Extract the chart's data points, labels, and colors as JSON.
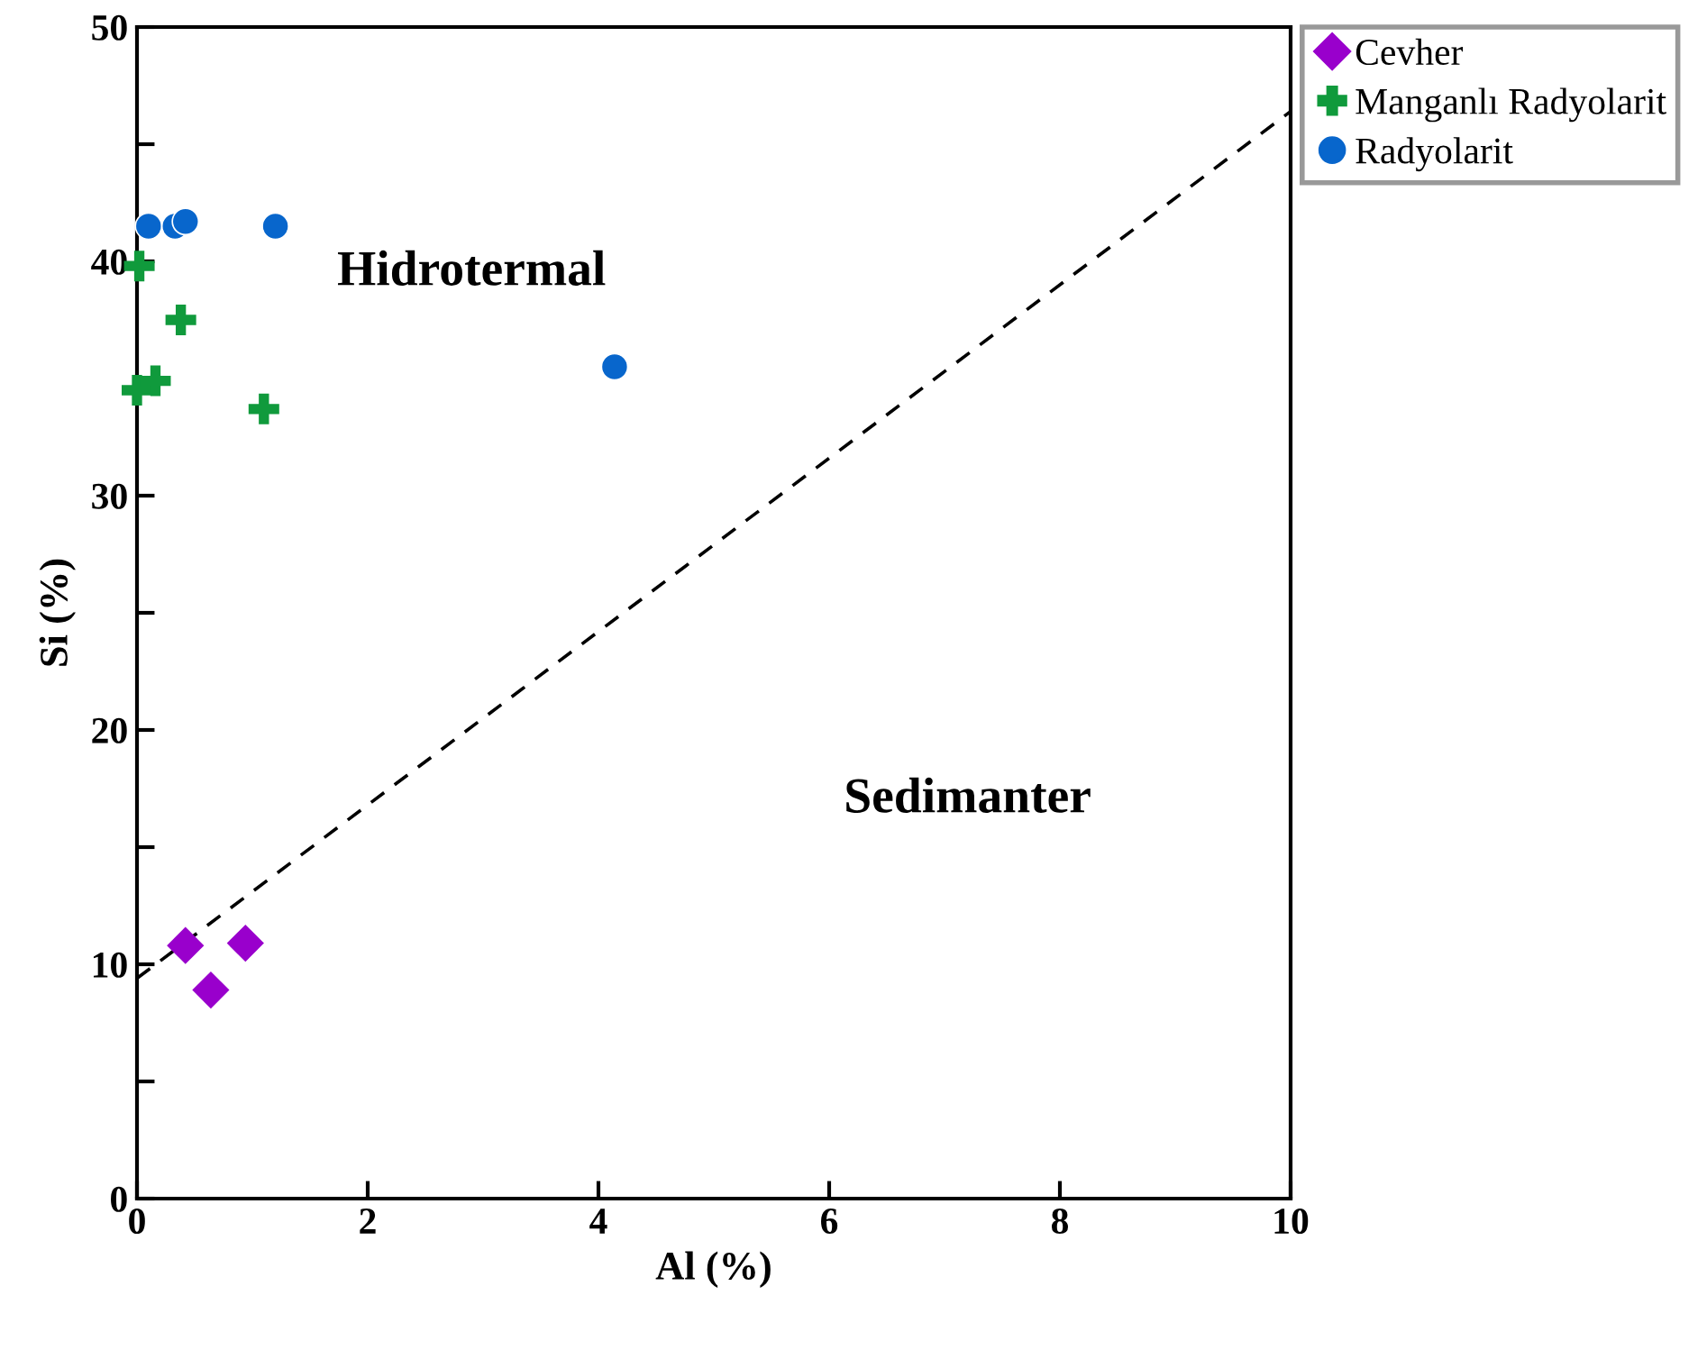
{
  "chart_data": {
    "type": "scatter",
    "xlabel": "Al (%)",
    "ylabel": "Si (%)",
    "xlim": [
      0,
      10
    ],
    "ylim": [
      0,
      50
    ],
    "xticks": [
      0,
      2,
      4,
      6,
      8,
      10
    ],
    "yticks": [
      0,
      {
        "value": 5,
        "label": null
      },
      10,
      {
        "value": 15,
        "label": null
      },
      20,
      {
        "value": 25,
        "label": null
      },
      30,
      {
        "value": 35,
        "label": null
      },
      40,
      {
        "value": 45,
        "label": null
      },
      50
    ],
    "grid": false,
    "legend": "top right",
    "series": [
      {
        "name": "Cevher",
        "color": "#9900cc",
        "marker": "diamond",
        "x": [
          0.42,
          0.64,
          0.94
        ],
        "values": [
          10.8,
          8.9,
          10.9
        ]
      },
      {
        "name": "Manganlı Radyolarit",
        "color": "#109a3c",
        "marker": "cross",
        "x": [
          0.02,
          0.0,
          0.16,
          0.38,
          1.1
        ],
        "values": [
          39.8,
          34.5,
          34.9,
          37.5,
          33.7
        ]
      },
      {
        "name": "Radyolarit",
        "color": "#0866cc",
        "marker": "circle",
        "x": [
          0.1,
          0.33,
          0.42,
          1.2,
          4.14
        ],
        "values": [
          41.5,
          41.5,
          41.7,
          41.5,
          35.5
        ]
      },
      {
        "type": "line",
        "color": "#000000",
        "line_style": "dashed",
        "marker": "none",
        "x": [
          0,
          10
        ],
        "values": [
          9.4,
          46.4
        ]
      }
    ],
    "annotations": [
      "Hidrotermal",
      "Sedimanter"
    ]
  }
}
